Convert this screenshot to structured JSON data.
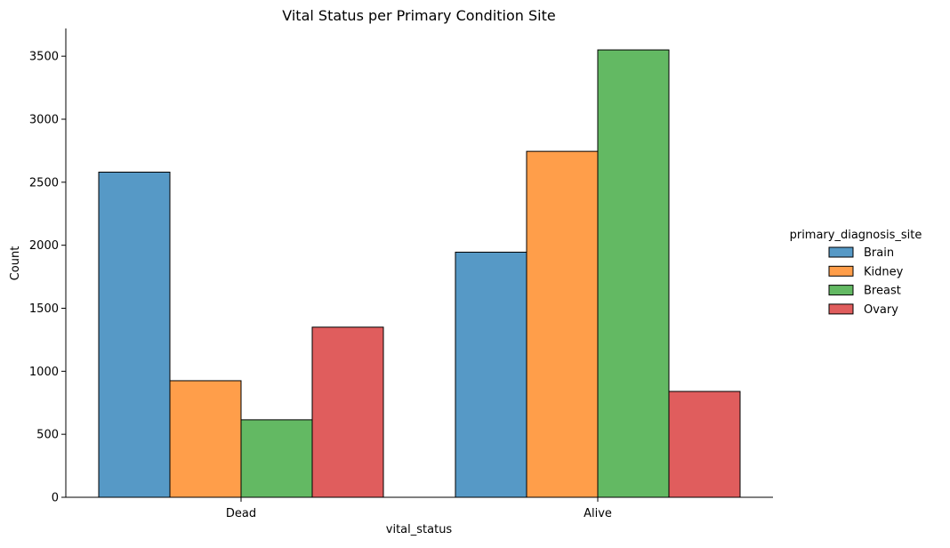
{
  "chart_data": {
    "type": "bar",
    "title": "Vital Status per Primary Condition Site",
    "xlabel": "vital_status",
    "ylabel": "Count",
    "categories": [
      "Dead",
      "Alive"
    ],
    "ylim": [
      0,
      3720
    ],
    "yticks": [
      0,
      500,
      1000,
      1500,
      2000,
      2500,
      3000,
      3500
    ],
    "grid": false,
    "legend": {
      "title": "primary_diagnosis_site",
      "placement": "right"
    },
    "series": [
      {
        "name": "Brain",
        "color": "#5699c6",
        "values": [
          2580,
          1945
        ]
      },
      {
        "name": "Kidney",
        "color": "#ff9e4a",
        "values": [
          925,
          2745
        ]
      },
      {
        "name": "Breast",
        "color": "#63b963",
        "values": [
          615,
          3550
        ]
      },
      {
        "name": "Ovary",
        "color": "#e05d5d",
        "values": [
          1350,
          840
        ]
      }
    ]
  }
}
